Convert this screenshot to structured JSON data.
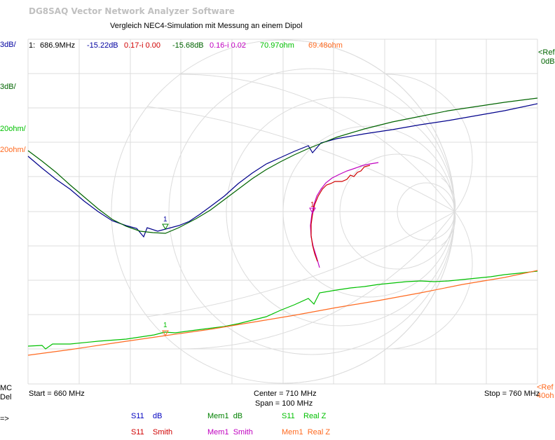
{
  "app_title": "DG8SAQ Vector Network Analyzer Software",
  "plot_title": "Vergleich NEC4-Simulation mit Messung an einem Dipol",
  "scale_labels": [
    {
      "text": "3dB/",
      "color": "#0000a0"
    },
    {
      "text": "3dB/",
      "color": "#006400"
    },
    {
      "text": "20ohm/",
      "color": "#00c000"
    },
    {
      "text": "20ohm/",
      "color": "#ff6a20"
    }
  ],
  "marker_readout": {
    "index": "1:",
    "freq": "686.9MHz",
    "values": [
      {
        "text": "-15.22dB",
        "color": "#0000a0"
      },
      {
        "text": "0.17-i 0.00",
        "color": "#d00000"
      },
      {
        "text": "-15.68dB",
        "color": "#006400"
      },
      {
        "text": "0.16-i 0.02",
        "color": "#c000c0"
      },
      {
        "text": "70.97ohm",
        "color": "#00c000"
      },
      {
        "text": "69.48ohm",
        "color": "#ff6a20"
      }
    ]
  },
  "right_ref": {
    "top_a": "<Ref",
    "top_b": "0dB",
    "bot_a": "<Ref",
    "bot_b": "40oh"
  },
  "bottom_left": {
    "mc": "MC",
    "del": "Del",
    "arrow": "=>"
  },
  "axis": {
    "start": "Start = 660 MHz",
    "center": "Center = 710 MHz",
    "span": "Span = 100 MHz",
    "stop": "Stop = 760 MHz"
  },
  "marker_label": "1",
  "legend": [
    {
      "a": "S11",
      "b": "dB",
      "color": "#0000c0"
    },
    {
      "a": "Mem1",
      "b": "dB",
      "color": "#008000"
    },
    {
      "a": "S11",
      "b": "Real Z",
      "color": "#00c000"
    },
    {
      "a": "S11",
      "b": "Smith",
      "color": "#d00000"
    },
    {
      "a": "Mem1",
      "b": "Smith",
      "color": "#c000c0"
    },
    {
      "a": "Mem1",
      "b": "Real Z",
      "color": "#ff6a20"
    }
  ],
  "colors": {
    "grid": "#d8d8d8",
    "s11_db": "#00008b",
    "mem1_db": "#006400",
    "s11_realz": "#00c000",
    "mem1_realz": "#ff6a20",
    "s11_smith": "#d00000",
    "mem1_smith": "#c000c0"
  }
}
